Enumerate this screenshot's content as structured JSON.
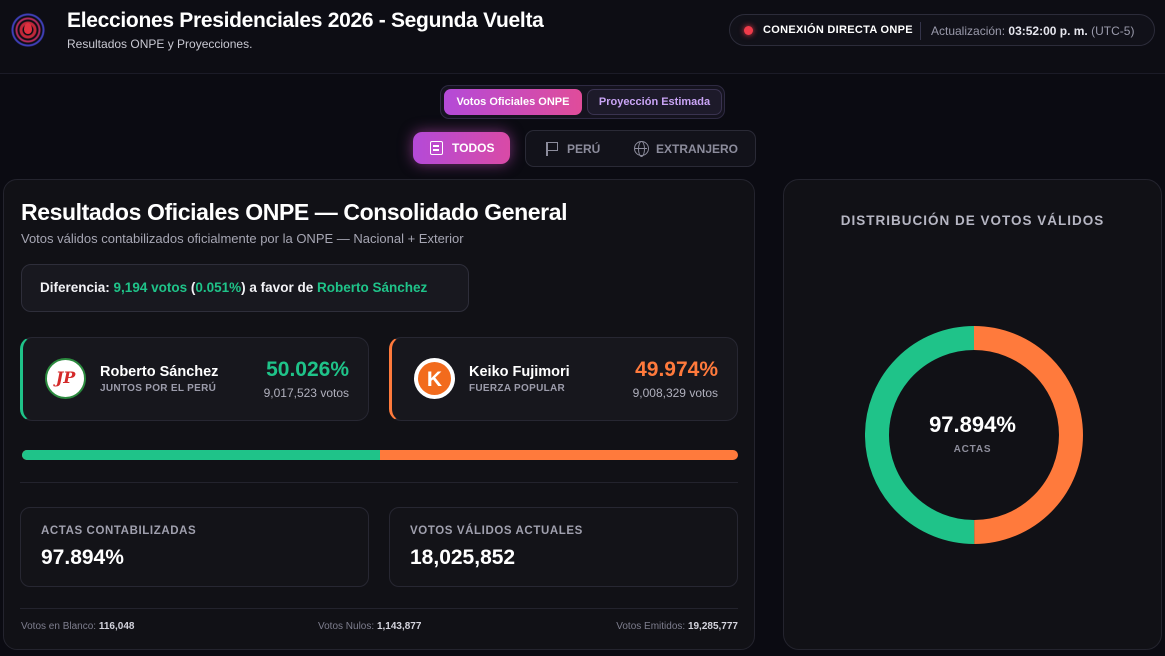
{
  "header": {
    "title": "Elecciones Presidenciales 2026 - Segunda Vuelta",
    "subtitle": "Resultados ONPE y Proyecciones.",
    "status_label": "CONEXIÓN DIRECTA ONPE",
    "update_label": "Actualización:",
    "update_time": "03:52:00 p. m.",
    "timezone": "(UTC-5)"
  },
  "modes": {
    "official": "Votos Oficiales ONPE",
    "projection": "Proyección Estimada"
  },
  "filters": {
    "all": "TODOS",
    "peru": "PERÚ",
    "abroad": "EXTRANJERO"
  },
  "main": {
    "title": "Resultados Oficiales ONPE — Consolidado General",
    "subtitle": "Votos válidos contabilizados oficialmente por la ONPE — Nacional + Exterior",
    "difference": {
      "label": "Diferencia:",
      "votes": "9,194 votos",
      "open_paren": "(",
      "pct": "0.051%",
      "close_paren": ")",
      "favor_text": "a favor de",
      "candidate": "Roberto Sánchez"
    },
    "candidates": [
      {
        "name": "Roberto Sánchez",
        "party": "JUNTOS POR EL PERÚ",
        "logo_text": "JP",
        "pct": "50.026%",
        "votes": "9,017,523 votos",
        "share": 50.026,
        "color": "#1fc389"
      },
      {
        "name": "Keiko Fujimori",
        "party": "FUERZA POPULAR",
        "logo_text": "K",
        "pct": "49.974%",
        "votes": "9,008,329 votos",
        "share": 49.974,
        "color": "#ff7a3c"
      }
    ],
    "stats": {
      "actas_label": "ACTAS CONTABILIZADAS",
      "actas_value": "97.894%",
      "valid_label": "VOTOS VÁLIDOS ACTUALES",
      "valid_value": "18,025,852"
    },
    "footer": {
      "blank_label": "Votos en Blanco:",
      "blank_value": "116,048",
      "null_label": "Votos Nulos:",
      "null_value": "1,143,877",
      "emitted_label": "Votos Emitidos:",
      "emitted_value": "19,285,777"
    }
  },
  "side": {
    "title": "DISTRIBUCIÓN DE VOTOS VÁLIDOS",
    "center_value": "97.894%",
    "center_label": "ACTAS"
  },
  "icons": {
    "all": "list-icon",
    "peru": "flag-icon",
    "abroad": "globe-icon",
    "status": "live-dot-icon"
  }
}
